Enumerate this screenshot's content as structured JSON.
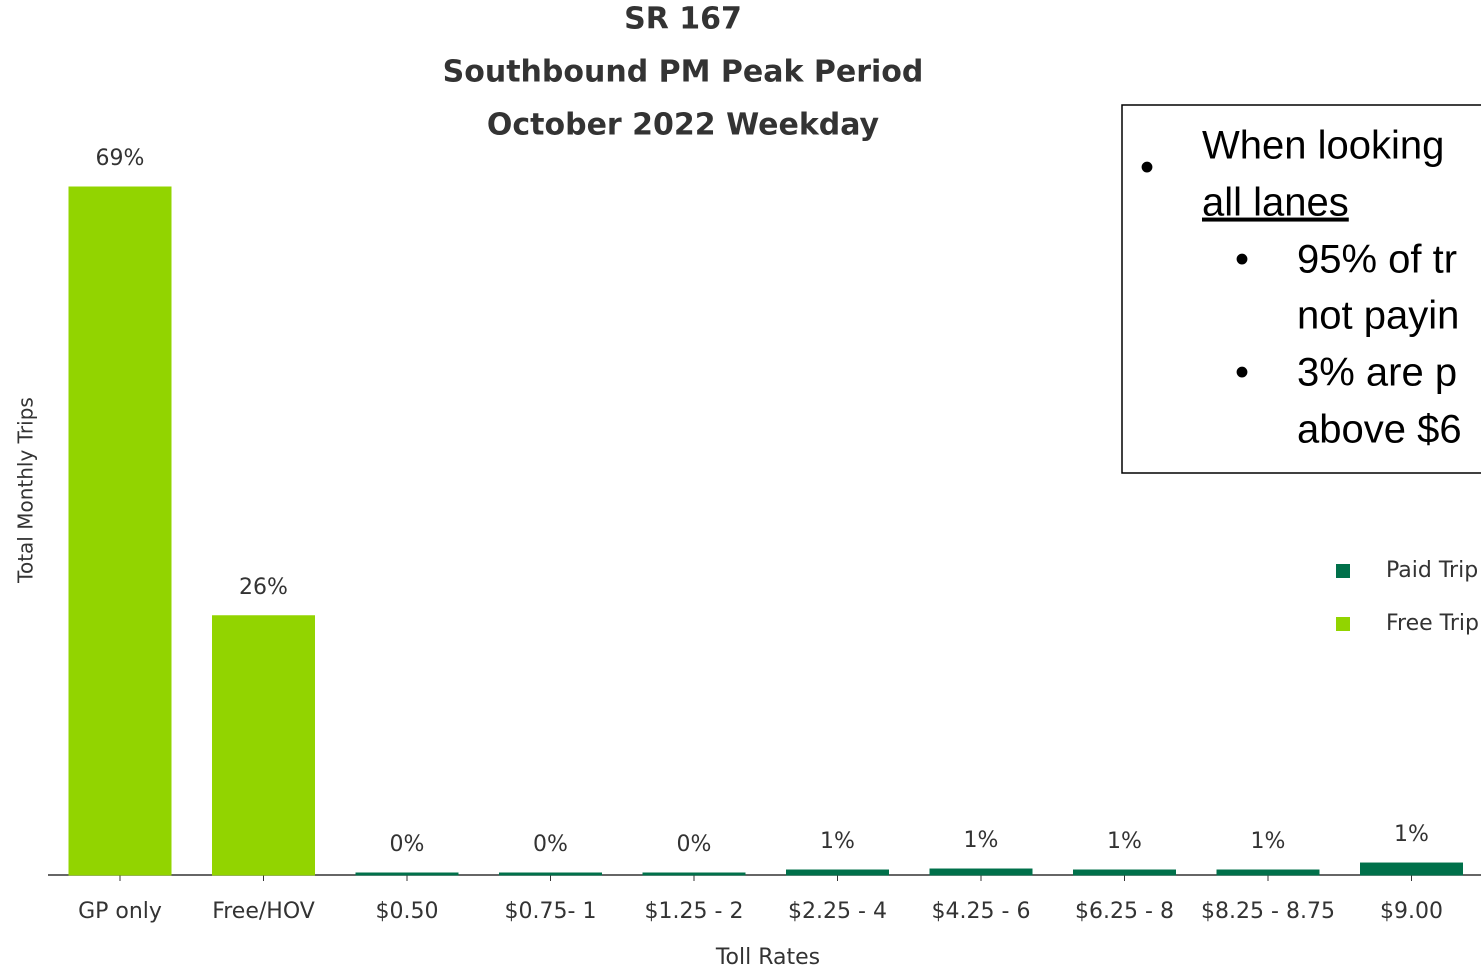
{
  "chart_data": {
    "type": "stacked_bar",
    "title": [
      "SR 167",
      "Southbound PM Peak Period",
      "October 2022 Weekday"
    ],
    "x_label": "Toll Rates",
    "y_label": "Total Monthly Trips",
    "categories": [
      "GP only",
      "Free/HOV",
      "$0.50",
      "$0.75- 1",
      "$1.25 - 2",
      "$2.25 - 4",
      "$4.25 - 6",
      "$6.25 - 8",
      "$8.25 - 8.75",
      "$9.00"
    ],
    "series": [
      {
        "name": "Free Trip",
        "color": "#92d400",
        "values": [
          69,
          26,
          0,
          0,
          0,
          0,
          0,
          0,
          0,
          0
        ],
        "value_labels": [
          "69%",
          "26%",
          null,
          null,
          null,
          null,
          null,
          null,
          null,
          null
        ]
      },
      {
        "name": "Paid Trip",
        "color": "#00704a",
        "values": [
          0,
          0,
          0.2,
          0.2,
          0.2,
          0.5,
          0.6,
          0.5,
          0.5,
          1.2
        ],
        "value_labels": [
          null,
          null,
          "0%",
          "0%",
          "0%",
          "1%",
          "1%",
          "1%",
          "1%",
          "1%"
        ]
      }
    ],
    "ylim": [
      0,
      69
    ],
    "legend": "right"
  },
  "text_box": {
    "lines": [
      "When looking",
      "all lanes",
      "95% of tr",
      "not payin",
      "3% are p",
      "above $6"
    ]
  }
}
